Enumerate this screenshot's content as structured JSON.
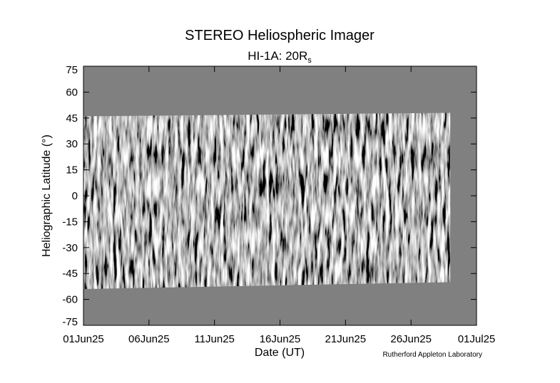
{
  "chart_data": {
    "type": "image",
    "title": "STEREO Heliospheric Imager",
    "subtitle": {
      "text": "HI-1A: 20R",
      "subscript": "s"
    },
    "x_label": "Date (UT)",
    "y_label": "Heliographic Latitude (°)",
    "credit": "Rutherford Appleton Laboratory",
    "xlim": [
      0,
      30
    ],
    "xticks": [
      {
        "value": 0,
        "label": "01Jun25"
      },
      {
        "value": 5,
        "label": "06Jun25"
      },
      {
        "value": 10,
        "label": "11Jun25"
      },
      {
        "value": 15,
        "label": "16Jun25"
      },
      {
        "value": 20,
        "label": "21Jun25"
      },
      {
        "value": 25,
        "label": "26Jun25"
      },
      {
        "value": 30,
        "label": "01Jul25"
      }
    ],
    "ylim": [
      -75,
      75
    ],
    "yticks": [
      75,
      60,
      45,
      30,
      15,
      0,
      -15,
      -30,
      -45,
      -60,
      -75
    ],
    "background_color": "#808080",
    "coverage": {
      "x": [
        0,
        28
      ],
      "top": [
        46,
        48
      ],
      "bottom": [
        -54,
        -50
      ]
    }
  }
}
